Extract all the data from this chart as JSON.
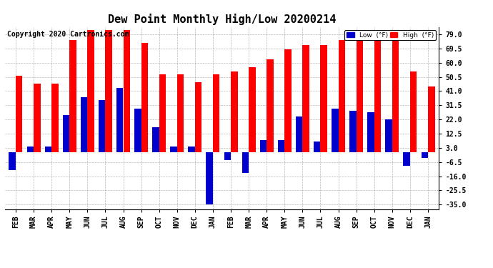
{
  "title": "Dew Point Monthly High/Low 20200214",
  "copyright": "Copyright 2020 Cartronics.com",
  "months": [
    "FEB",
    "MAR",
    "APR",
    "MAY",
    "JUN",
    "JUL",
    "AUG",
    "SEP",
    "OCT",
    "NOV",
    "DEC",
    "JAN",
    "FEB",
    "MAR",
    "APR",
    "MAY",
    "JUN",
    "JUL",
    "AUG",
    "SEP",
    "OCT",
    "NOV",
    "DEC",
    "JAN"
  ],
  "high": [
    51,
    46,
    46,
    75,
    82,
    82,
    82,
    73,
    52,
    52,
    47,
    52,
    54,
    57,
    62,
    69,
    72,
    72,
    75,
    75,
    75,
    75,
    54,
    44
  ],
  "low": [
    -12,
    4,
    4,
    25,
    37,
    35,
    43,
    29,
    17,
    4,
    4,
    -35,
    -5,
    -14,
    8,
    8,
    24,
    7,
    29,
    28,
    27,
    22,
    -9,
    -4
  ],
  "ylim_min": -38,
  "ylim_max": 84,
  "yticks": [
    -35.0,
    -25.5,
    -16.0,
    -6.5,
    3.0,
    12.5,
    22.0,
    31.5,
    41.0,
    50.5,
    60.0,
    69.5,
    79.0
  ],
  "bar_width": 0.38,
  "high_color": "#FF0000",
  "low_color": "#0000CC",
  "bg_color": "#FFFFFF",
  "grid_color": "#999999",
  "title_fontsize": 11,
  "axis_fontsize": 7,
  "copyright_fontsize": 7
}
